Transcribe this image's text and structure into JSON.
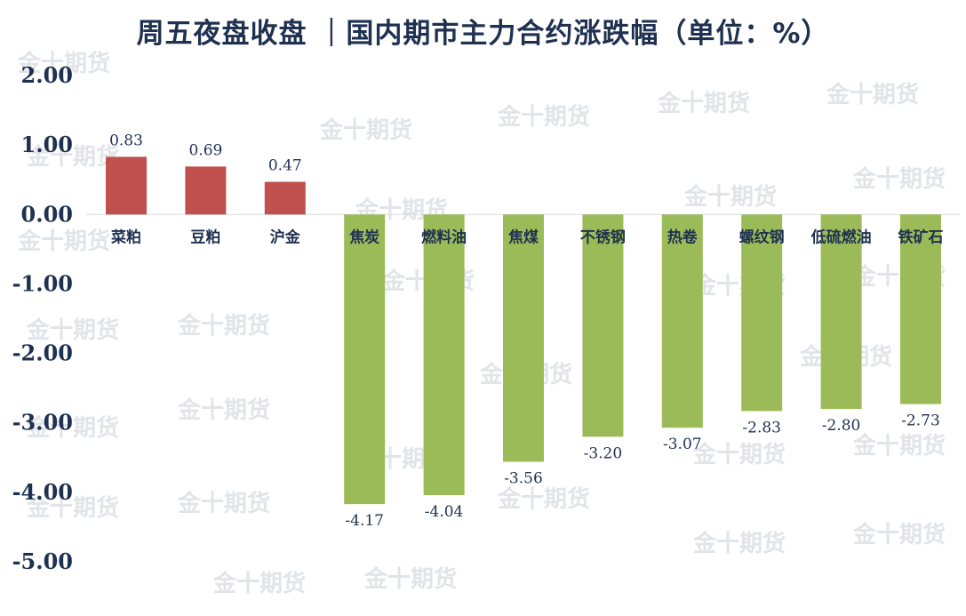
{
  "chart_data": {
    "type": "bar",
    "title": "周五夜盘收盘 ｜国内期市主力合约涨跌幅（单位：%）",
    "categories": [
      "菜粕",
      "豆粕",
      "沪金",
      "焦炭",
      "燃料油",
      "焦煤",
      "不锈钢",
      "热卷",
      "螺纹钢",
      "低硫燃油",
      "铁矿石"
    ],
    "values": [
      0.83,
      0.69,
      0.47,
      -4.17,
      -4.04,
      -3.56,
      -3.2,
      -3.07,
      -2.83,
      -2.8,
      -2.73
    ],
    "value_labels": [
      "0.83",
      "0.69",
      "0.47",
      "-4.17",
      "-4.04",
      "-3.56",
      "-3.20",
      "-3.07",
      "-2.83",
      "-2.80",
      "-2.73"
    ],
    "ylim": [
      -5,
      2
    ],
    "yticks": [
      "2.00",
      "1.00",
      "0.00",
      "-1.00",
      "-2.00",
      "-3.00",
      "-4.00",
      "-5.00"
    ],
    "xlabel": "",
    "ylabel": "",
    "grid": false,
    "legend": "none",
    "colors": {
      "positive": "#c0504d",
      "negative": "#9bbb59",
      "text": "#1f3150",
      "zero_line": "#d9d9d9"
    }
  },
  "watermark": "金十期货"
}
